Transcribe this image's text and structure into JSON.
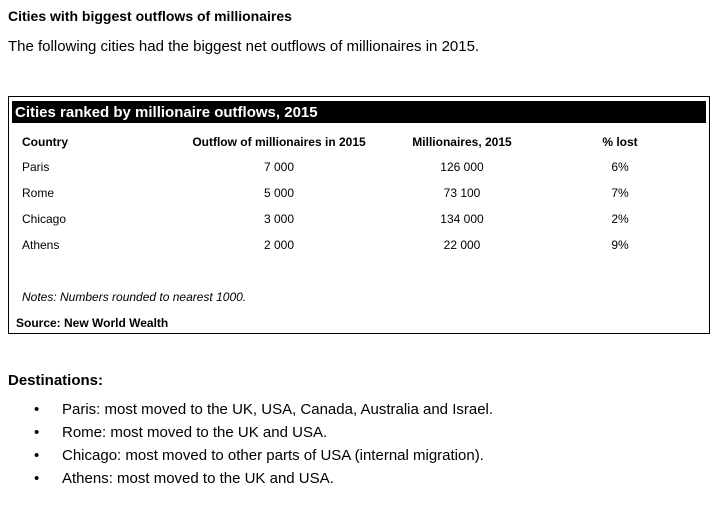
{
  "header": {
    "title": "Cities with biggest outflows of millionaires",
    "intro": "The following cities had the biggest net outflows of millionaires in 2015."
  },
  "table": {
    "title": "Cities ranked by millionaire outflows, 2015",
    "columns": [
      "Country",
      "Outflow of millionaires in 2015",
      "Millionaires, 2015",
      "% lost"
    ],
    "rows": [
      [
        "Paris",
        "7 000",
        "126 000",
        "6%"
      ],
      [
        "Rome",
        "5 000",
        "73 100",
        "7%"
      ],
      [
        "Chicago",
        "3 000",
        "134 000",
        "2%"
      ],
      [
        "Athens",
        "2 000",
        "22 000",
        "9%"
      ]
    ],
    "notes": "Notes: Numbers rounded to nearest 1000.",
    "source": "Source: New World Wealth"
  },
  "destinations": {
    "heading": "Destinations:",
    "items": [
      "Paris: most moved to the UK, USA, Canada, Australia and Israel.",
      "Rome: most moved to the UK and USA.",
      "Chicago: most moved to other parts of USA (internal migration).",
      "Athens: most moved to the UK and USA."
    ]
  }
}
